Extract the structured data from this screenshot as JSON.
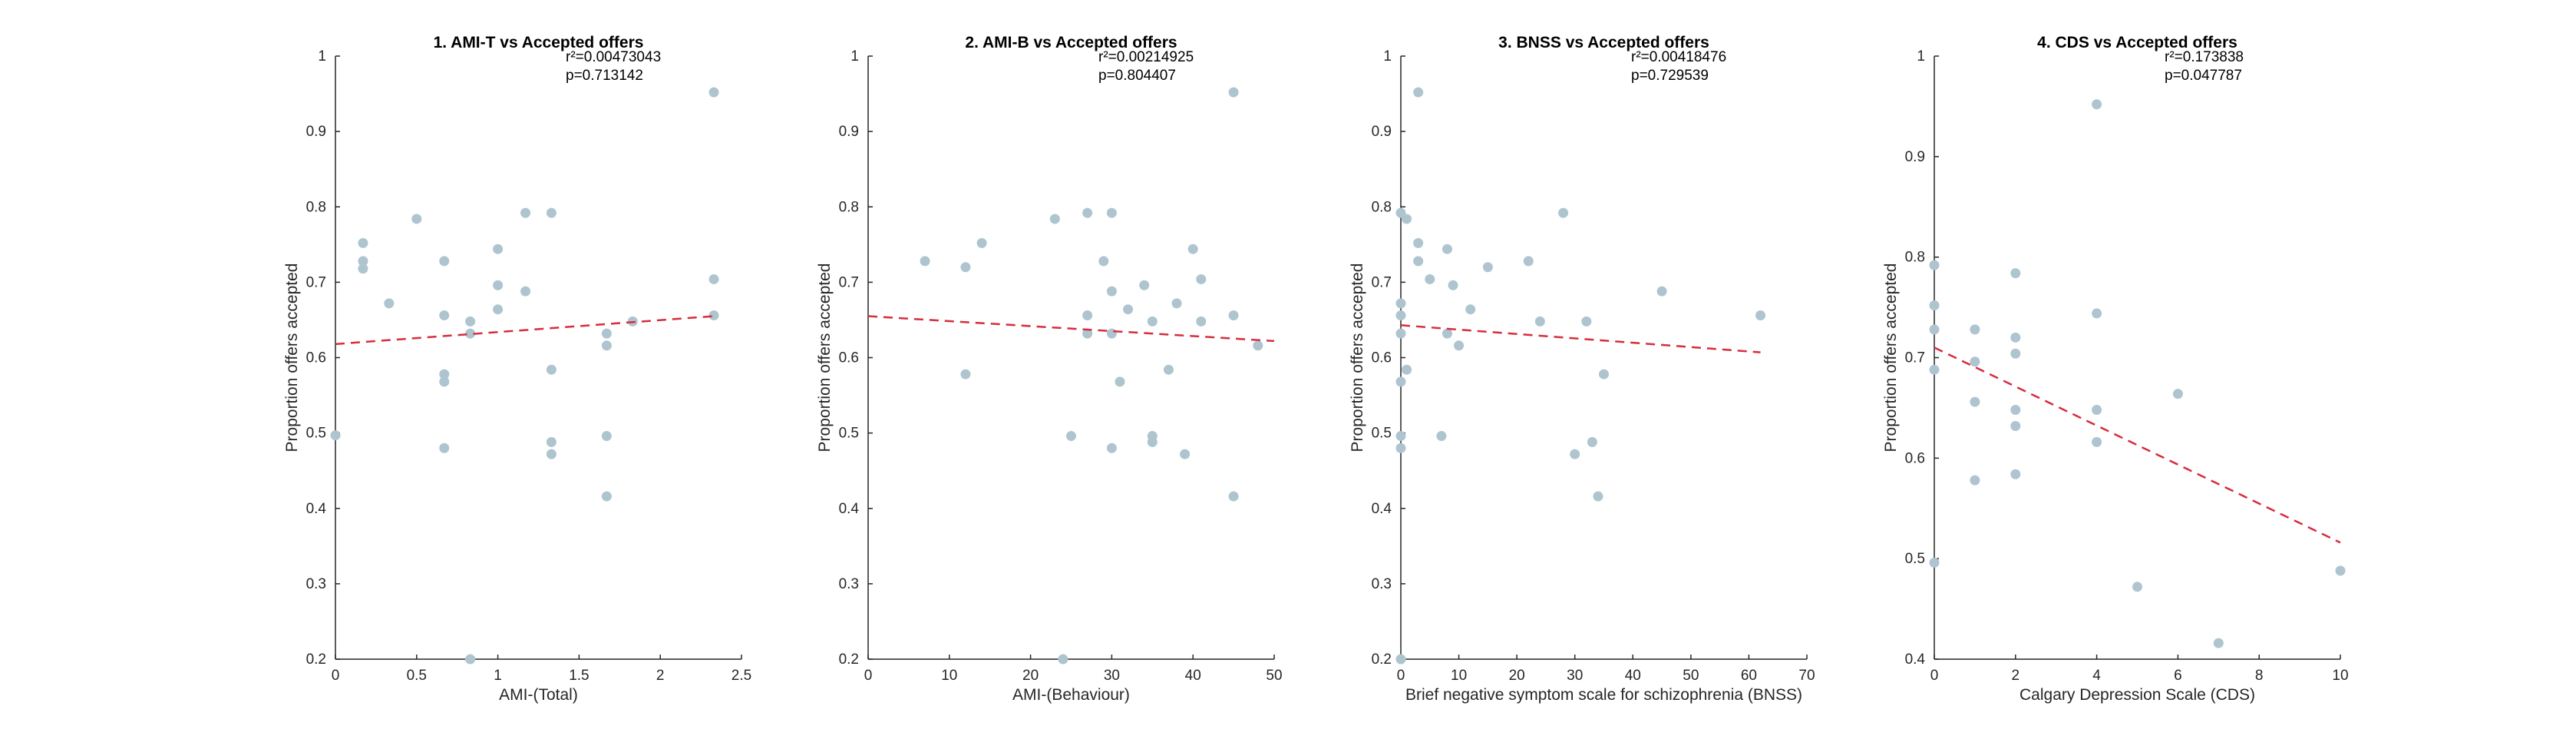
{
  "colors": {
    "points": "#aec4cf",
    "fit_line": "#d62d3f",
    "axis": "#262626"
  },
  "chart_data": [
    {
      "type": "scatter",
      "title": "1. AMI-T vs Accepted offers",
      "r2_label": "r²=0.00473043",
      "p_label": "p=0.713142",
      "xlabel": "AMI-(Total)",
      "ylabel": "Proportion offers accepted",
      "xlim": [
        0,
        2.5
      ],
      "ylim": [
        0.2,
        1
      ],
      "xticks": [
        "0",
        "0.5",
        "1",
        "1.5",
        "2",
        "2.5"
      ],
      "yticks": [
        "0.2",
        "0.3",
        "0.4",
        "0.5",
        "0.6",
        "0.7",
        "0.8",
        "0.9",
        "1"
      ],
      "points": [
        [
          0,
          0.497
        ],
        [
          0.17,
          0.752
        ],
        [
          0.17,
          0.728
        ],
        [
          0.17,
          0.718
        ],
        [
          0.33,
          0.672
        ],
        [
          0.5,
          0.784
        ],
        [
          0.67,
          0.728
        ],
        [
          0.67,
          0.656
        ],
        [
          0.67,
          0.578
        ],
        [
          0.67,
          0.568
        ],
        [
          0.67,
          0.48
        ],
        [
          0.83,
          0.648
        ],
        [
          0.83,
          0.632
        ],
        [
          0.83,
          0.2
        ],
        [
          1,
          0.744
        ],
        [
          1,
          0.696
        ],
        [
          1,
          0.664
        ],
        [
          1.17,
          0.792
        ],
        [
          1.17,
          0.688
        ],
        [
          1.33,
          0.792
        ],
        [
          1.33,
          0.584
        ],
        [
          1.33,
          0.488
        ],
        [
          1.33,
          0.472
        ],
        [
          1.67,
          0.632
        ],
        [
          1.67,
          0.616
        ],
        [
          1.67,
          0.496
        ],
        [
          1.67,
          0.416
        ],
        [
          1.83,
          0.648
        ],
        [
          2.33,
          0.952
        ],
        [
          2.33,
          0.704
        ],
        [
          2.33,
          0.656
        ]
      ],
      "fit": {
        "x": [
          0,
          2.33
        ],
        "y": [
          0.618,
          0.655
        ]
      }
    },
    {
      "type": "scatter",
      "title": "2. AMI-B vs Accepted offers",
      "r2_label": "r²=0.00214925",
      "p_label": "p=0.804407",
      "xlabel": "AMI-(Behaviour)",
      "ylabel": "Proportion offers accepted",
      "xlim": [
        0,
        50
      ],
      "ylim": [
        0.2,
        1
      ],
      "xticks": [
        "0",
        "10",
        "20",
        "30",
        "40",
        "50"
      ],
      "yticks": [
        "0.2",
        "0.3",
        "0.4",
        "0.5",
        "0.6",
        "0.7",
        "0.8",
        "0.9",
        "1"
      ],
      "points": [
        [
          7,
          0.728
        ],
        [
          12,
          0.72
        ],
        [
          12,
          0.578
        ],
        [
          14,
          0.752
        ],
        [
          23,
          0.784
        ],
        [
          24,
          0.2
        ],
        [
          25,
          0.496
        ],
        [
          27,
          0.792
        ],
        [
          27,
          0.656
        ],
        [
          27,
          0.632
        ],
        [
          29,
          0.728
        ],
        [
          30,
          0.792
        ],
        [
          30,
          0.688
        ],
        [
          30,
          0.632
        ],
        [
          30,
          0.48
        ],
        [
          31,
          0.568
        ],
        [
          32,
          0.664
        ],
        [
          34,
          0.696
        ],
        [
          35,
          0.648
        ],
        [
          35,
          0.496
        ],
        [
          35,
          0.488
        ],
        [
          37,
          0.584
        ],
        [
          38,
          0.672
        ],
        [
          39,
          0.472
        ],
        [
          40,
          0.744
        ],
        [
          41,
          0.704
        ],
        [
          41,
          0.648
        ],
        [
          45,
          0.952
        ],
        [
          45,
          0.656
        ],
        [
          45,
          0.416
        ],
        [
          48,
          0.616
        ]
      ],
      "fit": {
        "x": [
          0,
          50
        ],
        "y": [
          0.655,
          0.622
        ]
      }
    },
    {
      "type": "scatter",
      "title": "3. BNSS vs Accepted offers",
      "r2_label": "r²=0.00418476",
      "p_label": "p=0.729539",
      "xlabel": "Brief negative symptom scale for schizophrenia (BNSS)",
      "ylabel": "Proportion offers accepted",
      "xlim": [
        0,
        70
      ],
      "ylim": [
        0.2,
        1
      ],
      "xticks": [
        "0",
        "10",
        "20",
        "30",
        "40",
        "50",
        "60",
        "70"
      ],
      "yticks": [
        "0.2",
        "0.3",
        "0.4",
        "0.5",
        "0.6",
        "0.7",
        "0.8",
        "0.9",
        "1"
      ],
      "points": [
        [
          0,
          0.792
        ],
        [
          0,
          0.672
        ],
        [
          0,
          0.656
        ],
        [
          0,
          0.632
        ],
        [
          0,
          0.568
        ],
        [
          0,
          0.496
        ],
        [
          0,
          0.48
        ],
        [
          0,
          0.2
        ],
        [
          1,
          0.784
        ],
        [
          1,
          0.584
        ],
        [
          3,
          0.952
        ],
        [
          3,
          0.752
        ],
        [
          3,
          0.728
        ],
        [
          5,
          0.704
        ],
        [
          7,
          0.496
        ],
        [
          8,
          0.744
        ],
        [
          8,
          0.632
        ],
        [
          9,
          0.696
        ],
        [
          10,
          0.616
        ],
        [
          12,
          0.664
        ],
        [
          15,
          0.72
        ],
        [
          22,
          0.728
        ],
        [
          24,
          0.648
        ],
        [
          28,
          0.792
        ],
        [
          30,
          0.472
        ],
        [
          32,
          0.648
        ],
        [
          33,
          0.488
        ],
        [
          34,
          0.416
        ],
        [
          35,
          0.578
        ],
        [
          45,
          0.688
        ],
        [
          62,
          0.656
        ]
      ],
      "fit": {
        "x": [
          0,
          62
        ],
        "y": [
          0.643,
          0.607
        ]
      }
    },
    {
      "type": "scatter",
      "title": "4. CDS vs Accepted offers",
      "r2_label": "r²=0.173838",
      "p_label": "p=0.047787",
      "xlabel": "Calgary Depression Scale (CDS)",
      "ylabel": "Proportion offers accepted",
      "xlim": [
        0,
        10
      ],
      "ylim": [
        0.4,
        1
      ],
      "xticks": [
        "0",
        "2",
        "4",
        "6",
        "8",
        "10"
      ],
      "yticks": [
        "0.4",
        "0.5",
        "0.6",
        "0.7",
        "0.8",
        "0.9",
        "1"
      ],
      "points": [
        [
          0,
          0.792
        ],
        [
          0,
          0.752
        ],
        [
          0,
          0.728
        ],
        [
          0,
          0.688
        ],
        [
          0,
          0.496
        ],
        [
          1,
          0.728
        ],
        [
          1,
          0.696
        ],
        [
          1,
          0.656
        ],
        [
          1,
          0.578
        ],
        [
          2,
          0.784
        ],
        [
          2,
          0.72
        ],
        [
          2,
          0.704
        ],
        [
          2,
          0.648
        ],
        [
          2,
          0.632
        ],
        [
          2,
          0.584
        ],
        [
          4,
          0.952
        ],
        [
          4,
          0.744
        ],
        [
          4,
          0.648
        ],
        [
          4,
          0.616
        ],
        [
          5,
          0.472
        ],
        [
          6,
          0.664
        ],
        [
          7,
          0.416
        ],
        [
          10,
          0.488
        ]
      ],
      "fit": {
        "x": [
          0,
          10
        ],
        "y": [
          0.71,
          0.516
        ]
      }
    }
  ]
}
